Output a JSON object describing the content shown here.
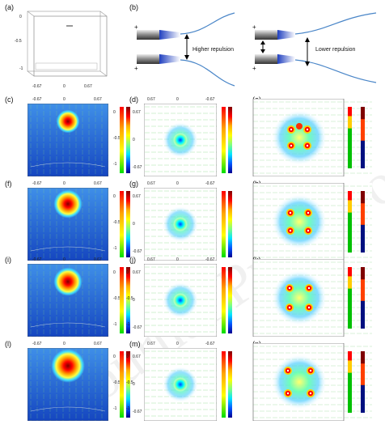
{
  "panel_labels": [
    "(a)",
    "(b)",
    "(c)",
    "(d)",
    "(e)",
    "(f)",
    "(g)",
    "(h)",
    "(i)",
    "(j)",
    "(k)",
    "(l)",
    "(m)",
    "(n)"
  ],
  "panel_a": {
    "y_ticks": [
      "0",
      "-0.5",
      "-1"
    ],
    "x_ticks": [
      "-0.67",
      "0",
      "0.67"
    ]
  },
  "panel_b": {
    "left_text": "Higher repulsion",
    "right_text": "Lower repulsion",
    "charge": "+"
  },
  "row_ticks": {
    "top": [
      "-0.67",
      "0",
      "0.67"
    ],
    "side": [
      "0",
      "-0.5",
      "-1"
    ],
    "side_alt": [
      "0.67",
      "0",
      "-0.67"
    ],
    "cbar": [
      "0.67",
      "0",
      "-0.67"
    ]
  },
  "watermark": "Journal Pre-proofs",
  "colors": {
    "jet_hot": "#ff0000",
    "background_blue": "#1f5fd0",
    "arrow": "#7fd37f"
  }
}
